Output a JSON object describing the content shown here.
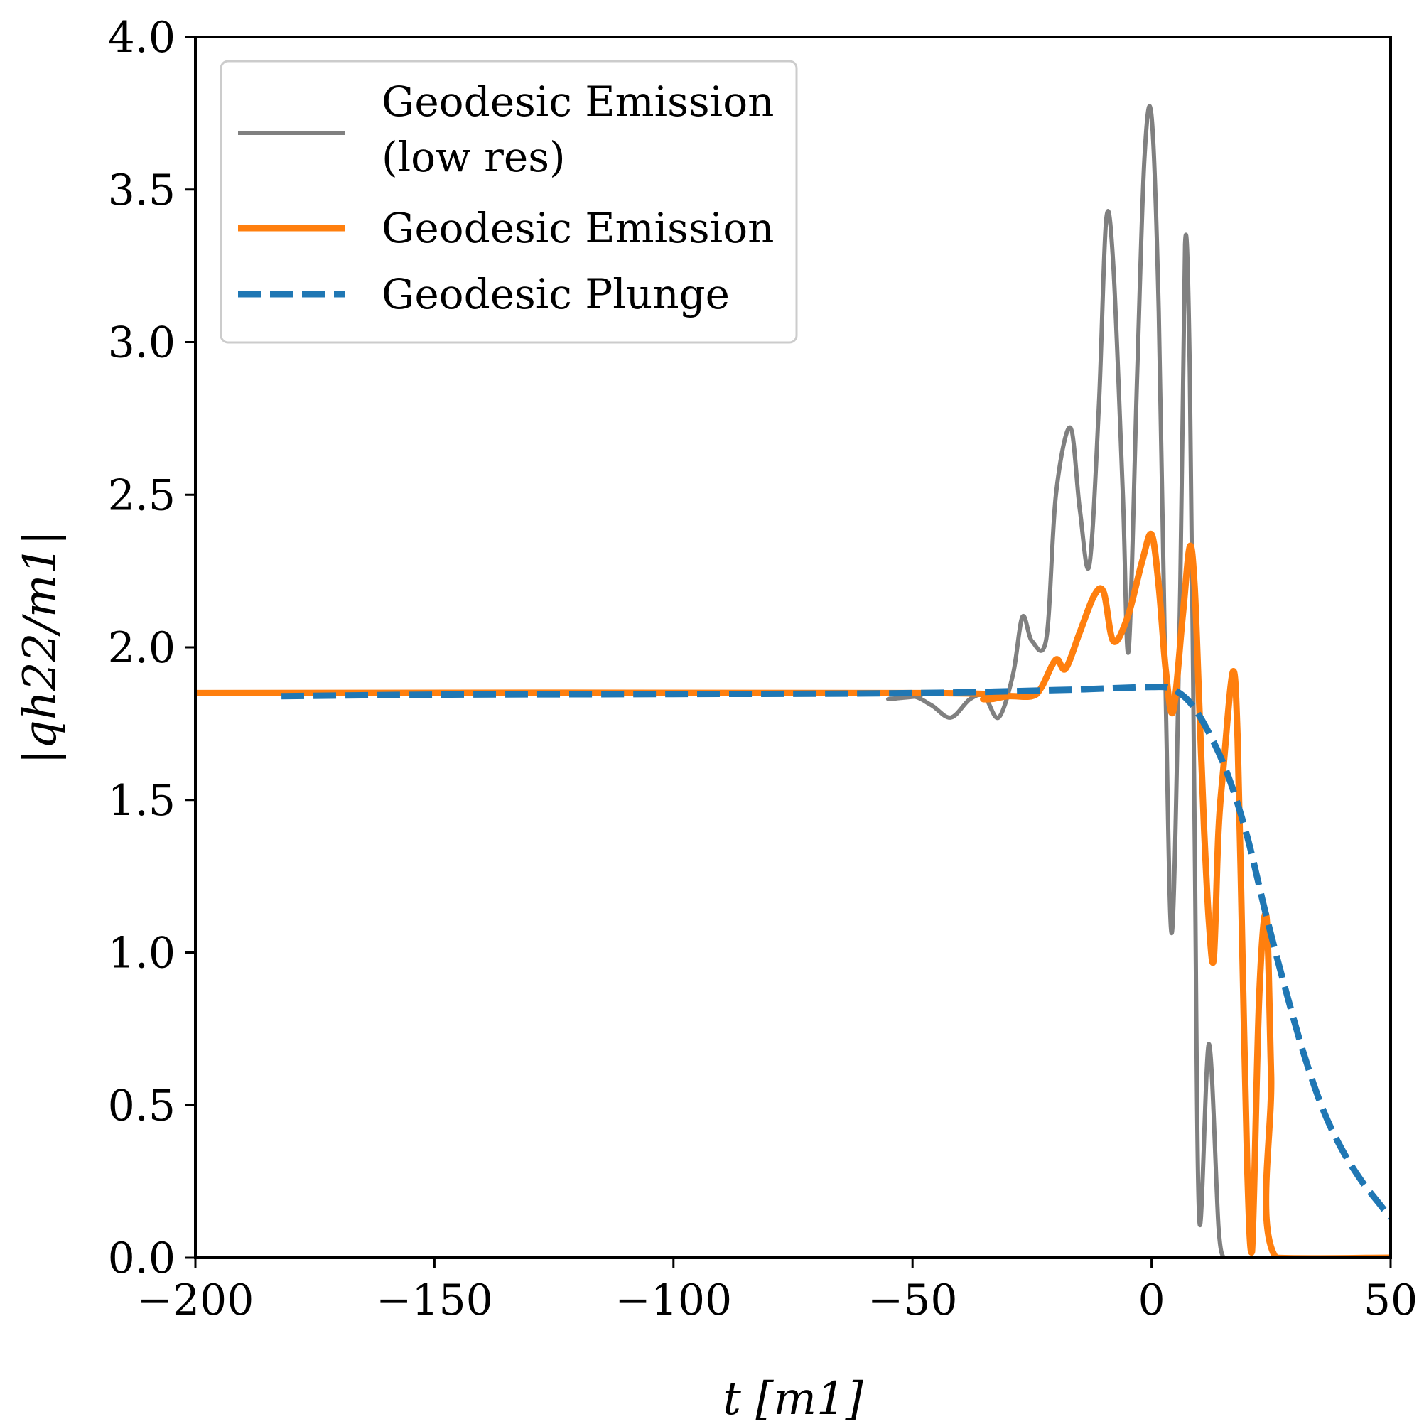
{
  "chart_data": {
    "type": "line",
    "title": "",
    "xlabel": "t [m1]",
    "ylabel": "|qh22/m1|",
    "xlim": [
      -200,
      50
    ],
    "ylim": [
      0.0,
      4.0
    ],
    "grid": false,
    "legend_position": "top-left",
    "x_tick_labels": [
      "−200",
      "−150",
      "−100",
      "−50",
      "0",
      "50"
    ],
    "x_ticks": [
      -200,
      -150,
      -100,
      -50,
      0,
      50
    ],
    "y_tick_labels": [
      "0.0",
      "0.5",
      "1.0",
      "1.5",
      "2.0",
      "2.5",
      "3.0",
      "3.5",
      "4.0"
    ],
    "y_ticks": [
      0.0,
      0.5,
      1.0,
      1.5,
      2.0,
      2.5,
      3.0,
      3.5,
      4.0
    ],
    "series": [
      {
        "name": "Geodesic Emission (low res)",
        "legend_lines": [
          "Geodesic Emission",
          "(low res)"
        ],
        "color": "#808080",
        "style": "solid",
        "x": [
          -200,
          -60,
          -55,
          -50,
          -46,
          -42,
          -38,
          -35,
          -32,
          -29,
          -27,
          -25,
          -22,
          -20,
          -17,
          -15,
          -13,
          -11,
          -9.5,
          -8,
          -6,
          -4.8,
          -3,
          -1.5,
          0,
          1.5,
          3,
          4.3,
          6,
          7,
          8,
          9,
          10,
          12,
          14,
          15
        ],
        "values": [
          1.85,
          1.85,
          1.83,
          1.84,
          1.81,
          1.77,
          1.83,
          1.84,
          1.77,
          1.91,
          2.1,
          2.02,
          2.03,
          2.5,
          2.72,
          2.45,
          2.27,
          2.8,
          3.4,
          3.25,
          2.5,
          1.99,
          2.9,
          3.6,
          3.74,
          3.1,
          1.8,
          1.07,
          2.2,
          3.32,
          2.9,
          1.4,
          0.12,
          0.7,
          0.1,
          0.0
        ]
      },
      {
        "name": "Geodesic Emission",
        "legend_lines": [
          "Geodesic Emission"
        ],
        "color": "#ff7f0e",
        "style": "solid",
        "x": [
          -200,
          -45,
          -35,
          -30,
          -25,
          -23,
          -20,
          -18,
          -15,
          -12,
          -10,
          -8,
          -5,
          -2,
          0,
          1.5,
          3,
          4.5,
          6.5,
          8,
          9,
          10,
          11,
          12,
          13,
          14,
          15,
          17,
          18,
          19,
          20,
          21,
          22.5,
          24,
          25,
          26,
          50
        ],
        "values": [
          1.85,
          1.85,
          1.83,
          1.84,
          1.84,
          1.87,
          1.96,
          1.93,
          2.05,
          2.17,
          2.18,
          2.02,
          2.1,
          2.28,
          2.37,
          2.2,
          1.92,
          1.79,
          2.1,
          2.33,
          2.2,
          1.8,
          1.4,
          1.1,
          0.98,
          1.4,
          1.6,
          1.92,
          1.7,
          1.0,
          0.3,
          0.02,
          0.85,
          1.12,
          0.6,
          0.0,
          0.0
        ]
      },
      {
        "name": "Geodesic Plunge",
        "legend_lines": [
          "Geodesic Plunge"
        ],
        "color": "#1f77b4",
        "style": "dashed",
        "x": [
          -182,
          -150,
          -100,
          -50,
          -20,
          -10,
          0,
          4,
          8,
          12,
          16,
          20,
          24,
          28,
          32,
          36,
          40,
          44,
          48,
          50
        ],
        "values": [
          1.84,
          1.845,
          1.847,
          1.85,
          1.86,
          1.865,
          1.87,
          1.865,
          1.82,
          1.72,
          1.58,
          1.38,
          1.12,
          0.88,
          0.66,
          0.48,
          0.35,
          0.25,
          0.17,
          0.13
        ]
      }
    ]
  }
}
